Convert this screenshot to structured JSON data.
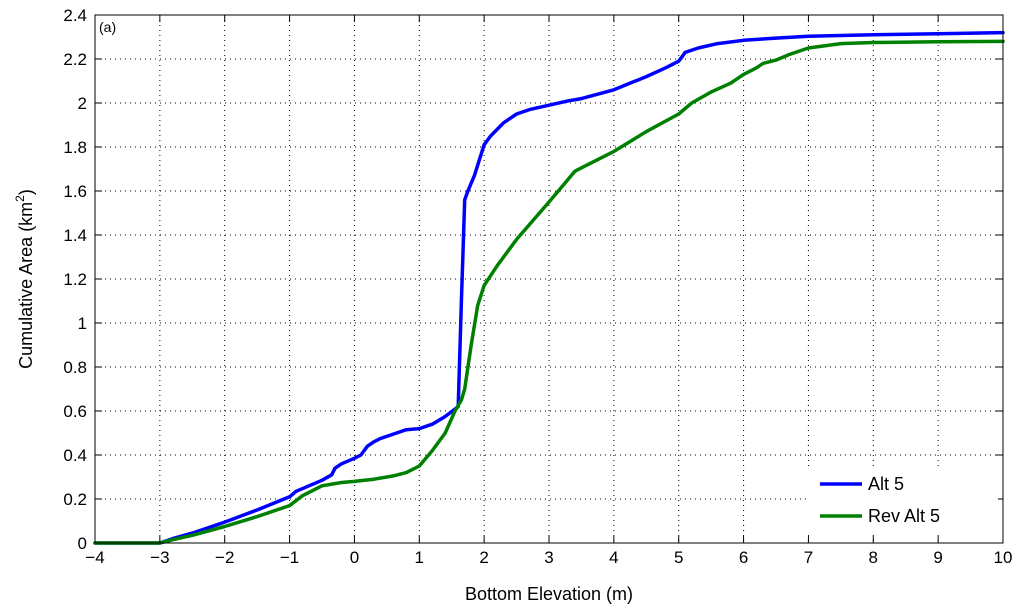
{
  "chart_data": {
    "type": "line",
    "panel_label": "(a)",
    "xlabel": "Bottom Elevation (m)",
    "ylabel": "Cumulative Area (km",
    "ylabel_sup": "2",
    "ylabel_end": ")",
    "xlim": [
      -4,
      10
    ],
    "ylim": [
      0,
      2.4
    ],
    "x_ticks": [
      -4,
      -3,
      -2,
      -1,
      0,
      1,
      2,
      3,
      4,
      5,
      6,
      7,
      8,
      9,
      10
    ],
    "x_tick_labels": [
      "−4",
      "−3",
      "−2",
      "−1",
      "0",
      "1",
      "2",
      "3",
      "4",
      "5",
      "6",
      "7",
      "8",
      "9",
      "10"
    ],
    "y_ticks": [
      0,
      0.2,
      0.4,
      0.6,
      0.8,
      1.0,
      1.2,
      1.4,
      1.6,
      1.8,
      2.0,
      2.2,
      2.4
    ],
    "y_tick_labels": [
      "0",
      "0.2",
      "0.4",
      "0.6",
      "0.8",
      "1",
      "1.2",
      "1.4",
      "1.6",
      "1.8",
      "2",
      "2.2",
      "2.4"
    ],
    "grid": true,
    "legend_position": "bottom-right",
    "series": [
      {
        "name": "Alt 5",
        "color": "#0000ff",
        "x": [
          -4,
          -3,
          -2.8,
          -2.5,
          -2,
          -1.5,
          -1,
          -0.9,
          -0.7,
          -0.5,
          -0.35,
          -0.3,
          -0.2,
          0,
          0.1,
          0.2,
          0.3,
          0.4,
          0.6,
          0.8,
          1.0,
          1.2,
          1.4,
          1.6,
          1.65,
          1.7,
          1.75,
          1.85,
          2.0,
          2.1,
          2.3,
          2.5,
          2.7,
          3.0,
          3.3,
          3.5,
          4.0,
          4.5,
          4.8,
          5.0,
          5.05,
          5.1,
          5.3,
          5.6,
          6.0,
          6.5,
          7.0,
          8.0,
          9.0,
          10.0
        ],
        "y": [
          0,
          0,
          0.02,
          0.045,
          0.095,
          0.15,
          0.21,
          0.235,
          0.26,
          0.285,
          0.31,
          0.34,
          0.36,
          0.385,
          0.4,
          0.44,
          0.46,
          0.475,
          0.495,
          0.515,
          0.52,
          0.54,
          0.575,
          0.62,
          1.1,
          1.56,
          1.6,
          1.67,
          1.81,
          1.85,
          1.91,
          1.95,
          1.97,
          1.99,
          2.01,
          2.02,
          2.06,
          2.12,
          2.16,
          2.19,
          2.21,
          2.23,
          2.25,
          2.27,
          2.285,
          2.295,
          2.303,
          2.31,
          2.315,
          2.32
        ]
      },
      {
        "name": "Rev Alt 5",
        "color": "#008000",
        "x": [
          -4,
          -3,
          -2.8,
          -2.5,
          -2,
          -1.5,
          -1,
          -0.8,
          -0.5,
          -0.2,
          0,
          0.3,
          0.6,
          0.8,
          1.0,
          1.2,
          1.4,
          1.55,
          1.65,
          1.7,
          1.8,
          1.9,
          2.0,
          2.2,
          2.5,
          3.0,
          3.2,
          3.4,
          3.6,
          4.0,
          4.5,
          5.0,
          5.2,
          5.5,
          5.8,
          6.0,
          6.2,
          6.3,
          6.5,
          6.7,
          7.0,
          7.5,
          8.0,
          9.0,
          10.0
        ],
        "y": [
          0,
          0,
          0.015,
          0.035,
          0.075,
          0.12,
          0.17,
          0.215,
          0.26,
          0.275,
          0.28,
          0.29,
          0.305,
          0.32,
          0.35,
          0.42,
          0.5,
          0.6,
          0.65,
          0.7,
          0.9,
          1.08,
          1.17,
          1.26,
          1.38,
          1.55,
          1.62,
          1.69,
          1.72,
          1.78,
          1.87,
          1.95,
          2.0,
          2.05,
          2.09,
          2.13,
          2.16,
          2.18,
          2.195,
          2.22,
          2.25,
          2.27,
          2.275,
          2.278,
          2.28
        ]
      }
    ]
  }
}
